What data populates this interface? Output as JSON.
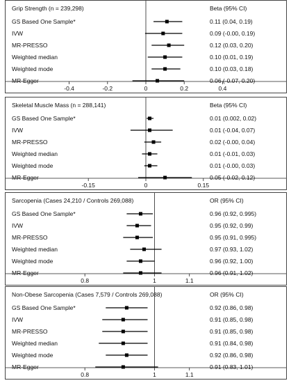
{
  "chart_data": [
    {
      "type": "forest",
      "title": "Grip Strength (n = 239,298)",
      "estimate_header": "Beta (95% CI)",
      "xlim": [
        -0.5,
        0.5
      ],
      "null_value": 0,
      "ticks": [
        "-0.4",
        "-0.2",
        "0",
        "0.2",
        "0.4"
      ],
      "tick_values": [
        -0.4,
        -0.2,
        0,
        0.2,
        0.4
      ],
      "rows": [
        {
          "label": "GS Based One Sample*",
          "est": 0.11,
          "lo": 0.04,
          "hi": 0.19,
          "text": "0.11 (0.04, 0.19)"
        },
        {
          "label": "IVW",
          "est": 0.09,
          "lo": -0.004,
          "hi": 0.19,
          "text": "0.09 (-0.00, 0.19)"
        },
        {
          "label": "MR-PRESSO",
          "est": 0.12,
          "lo": 0.03,
          "hi": 0.2,
          "text": "0.12 (0.03, 0.20)"
        },
        {
          "label": "Weighted median",
          "est": 0.1,
          "lo": 0.01,
          "hi": 0.19,
          "text": "0.10 (0.01, 0.19)"
        },
        {
          "label": "Weighted mode",
          "est": 0.1,
          "lo": 0.03,
          "hi": 0.18,
          "text": "0.10 (0.03, 0.18)"
        },
        {
          "label": "MR-Egger",
          "est": 0.06,
          "lo": -0.07,
          "hi": 0.2,
          "text": "0.06 (-0.07, 0.20)"
        }
      ]
    },
    {
      "type": "forest",
      "title": "Skeletal Muscle Mass (n = 288,141)",
      "estimate_header": "Beta (95% CI)",
      "xlim": [
        -0.25,
        0.25
      ],
      "null_value": 0,
      "ticks": [
        "-0.15",
        "0",
        "0.15"
      ],
      "tick_values": [
        -0.15,
        0,
        0.15
      ],
      "rows": [
        {
          "label": "GS Based One Sample*",
          "est": 0.01,
          "lo": 0.002,
          "hi": 0.02,
          "text": "0.01 (0.002, 0.02)"
        },
        {
          "label": "IVW",
          "est": 0.01,
          "lo": -0.04,
          "hi": 0.07,
          "text": "0.01 (-0.04, 0.07)"
        },
        {
          "label": "MR-PRESSO",
          "est": 0.02,
          "lo": -0.004,
          "hi": 0.04,
          "text": "0.02 (-0.00, 0.04)"
        },
        {
          "label": "Weighted median",
          "est": 0.01,
          "lo": -0.01,
          "hi": 0.03,
          "text": "0.01 (-0.01, 0.03)"
        },
        {
          "label": "Weighted mode",
          "est": 0.01,
          "lo": -0.004,
          "hi": 0.03,
          "text": "0.01 (-0.00, 0.03)"
        },
        {
          "label": "MR-Egger",
          "est": 0.05,
          "lo": -0.02,
          "hi": 0.12,
          "text": "0.05 (-0.02, 0.12)"
        }
      ]
    },
    {
      "type": "forest",
      "title": "Sarcopenia (Cases 24,210 / Controls 269,088)",
      "estimate_header": "OR (95% CI)",
      "xlim": [
        0.7,
        1.25
      ],
      "null_value": 1,
      "ticks": [
        "0.8",
        "1",
        "1.1"
      ],
      "tick_values": [
        0.8,
        1,
        1.1
      ],
      "rows": [
        {
          "label": "GS Based One Sample*",
          "est": 0.96,
          "lo": 0.92,
          "hi": 0.995,
          "text": "0.96 (0.92, 0.995)"
        },
        {
          "label": "IVW",
          "est": 0.95,
          "lo": 0.92,
          "hi": 0.99,
          "text": "0.95 (0.92, 0.99)"
        },
        {
          "label": "MR-PRESSO",
          "est": 0.95,
          "lo": 0.91,
          "hi": 0.995,
          "text": "0.95 (0.91, 0.995)"
        },
        {
          "label": "Weighted median",
          "est": 0.97,
          "lo": 0.93,
          "hi": 1.02,
          "text": "0.97 (0.93, 1.02)"
        },
        {
          "label": "Weighted mode",
          "est": 0.96,
          "lo": 0.92,
          "hi": 1.0,
          "text": "0.96 (0.92, 1.00)"
        },
        {
          "label": "MR-Egger",
          "est": 0.96,
          "lo": 0.91,
          "hi": 1.02,
          "text": "0.96 (0.91, 1.02)"
        }
      ]
    },
    {
      "type": "forest",
      "title": "Non-Obese Sarcopenia (Cases 7,579 / Controls 269,088)",
      "estimate_header": "OR (95% CI)",
      "xlim": [
        0.7,
        1.25
      ],
      "null_value": 1,
      "ticks": [
        "0.8",
        "1",
        "1.1"
      ],
      "tick_values": [
        0.8,
        1,
        1.1
      ],
      "rows": [
        {
          "label": "GS Based One Sample*",
          "est": 0.92,
          "lo": 0.86,
          "hi": 0.98,
          "text": "0.92 (0.86, 0.98)"
        },
        {
          "label": "IVW",
          "est": 0.91,
          "lo": 0.85,
          "hi": 0.98,
          "text": "0.91 (0.85, 0.98)"
        },
        {
          "label": "MR-PRESSO",
          "est": 0.91,
          "lo": 0.85,
          "hi": 0.98,
          "text": "0.91 (0.85, 0.98)"
        },
        {
          "label": "Weighted median",
          "est": 0.91,
          "lo": 0.84,
          "hi": 0.98,
          "text": "0.91 (0.84, 0.98)"
        },
        {
          "label": "Weighted mode",
          "est": 0.92,
          "lo": 0.86,
          "hi": 0.98,
          "text": "0.92 (0.86, 0.98)"
        },
        {
          "label": "MR-Egger",
          "est": 0.91,
          "lo": 0.83,
          "hi": 1.01,
          "text": "0.91 (0.83, 1.01)"
        }
      ]
    }
  ]
}
